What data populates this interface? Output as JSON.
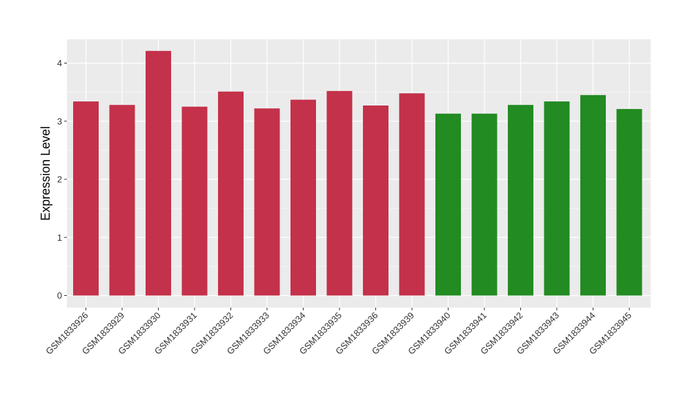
{
  "chart_data": {
    "type": "bar",
    "title": "",
    "xlabel": "",
    "ylabel": "Expression Level",
    "ylim": [
      0,
      4.4
    ],
    "y_ticks": [
      0,
      1,
      2,
      3,
      4
    ],
    "grid": true,
    "legend": "none",
    "categories": [
      "GSM1833926",
      "GSM1833929",
      "GSM1833930",
      "GSM1833931",
      "GSM1833932",
      "GSM1833933",
      "GSM1833934",
      "GSM1833935",
      "GSM1833936",
      "GSM1833939",
      "GSM1833940",
      "GSM1833941",
      "GSM1833942",
      "GSM1833943",
      "GSM1833944",
      "GSM1833945"
    ],
    "values": [
      3.34,
      3.28,
      4.21,
      3.25,
      3.51,
      3.22,
      3.37,
      3.52,
      3.27,
      3.48,
      3.13,
      3.13,
      3.28,
      3.34,
      3.45,
      3.21
    ],
    "bar_colors": [
      "#c4314a",
      "#c4314a",
      "#c4314a",
      "#c4314a",
      "#c4314a",
      "#c4314a",
      "#c4314a",
      "#c4314a",
      "#c4314a",
      "#c4314a",
      "#228b22",
      "#228b22",
      "#228b22",
      "#228b22",
      "#228b22",
      "#228b22"
    ],
    "panel_background": "#ebebeb",
    "grid_color": "#ffffff"
  }
}
